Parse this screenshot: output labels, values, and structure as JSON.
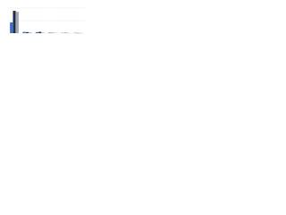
{
  "chart_data": {
    "type": "bar",
    "categories": [
      null,
      null,
      null,
      null,
      null,
      null
    ],
    "series": [
      {
        "color": "#2f6fd6",
        "values": [
          43,
          5,
          4,
          2,
          1,
          1
        ]
      },
      {
        "color": "#1b2a47",
        "values": [
          89,
          4,
          5,
          1,
          1,
          0.5
        ]
      },
      {
        "color": "#a3a6aa",
        "values": [
          85,
          3,
          2,
          1,
          0.5,
          0.5
        ]
      }
    ],
    "ylim": [
      0,
      100
    ],
    "yticks": [
      0,
      50,
      100
    ],
    "grid": true
  }
}
